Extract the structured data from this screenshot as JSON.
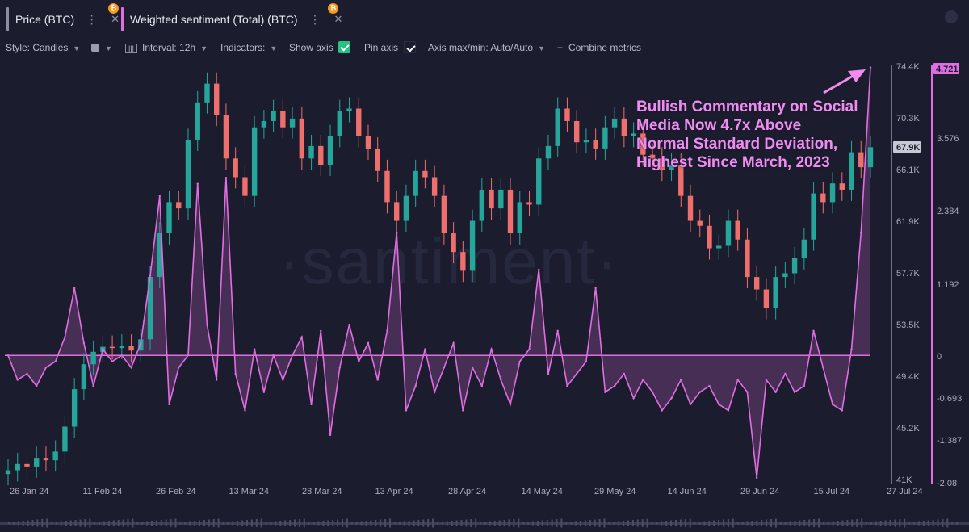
{
  "tabs": [
    {
      "label": "Price (BTC)",
      "bar_color": "#8b8fa3",
      "badge": "₿"
    },
    {
      "label": "Weighted sentiment (Total) (BTC)",
      "bar_color": "#e06ee0",
      "badge": "₿"
    }
  ],
  "toolbar": {
    "style": "Style: Candles",
    "interval": "Interval: 12h",
    "indicators": "Indicators:",
    "show_axis": "Show axis",
    "pin_axis": "Pin axis",
    "axis_maxmin": "Axis max/min: Auto/Auto",
    "combine": "Combine metrics"
  },
  "watermark": "·santiment·",
  "annotation": {
    "lines": [
      "Bullish Commentary on Social",
      "Media Now 4.7x Above",
      "Normal Standard Deviation,",
      "Highest Since March, 2023"
    ]
  },
  "colors": {
    "up": "#26a69a",
    "down": "#ef6f6c",
    "sentiment": "#e06ee0",
    "background": "#1b1d2f"
  },
  "chart_data": {
    "type": "line",
    "x_ticks": [
      "26 Jan 24",
      "11 Feb 24",
      "26 Feb 24",
      "13 Mar 24",
      "28 Mar 24",
      "13 Apr 24",
      "28 Apr 24",
      "14 May 24",
      "29 May 24",
      "14 Jun 24",
      "29 Jun 24",
      "15 Jul 24",
      "27 Jul 24"
    ],
    "price_axis": {
      "labels": [
        "74.4K",
        "70.3K",
        "66.1K",
        "61.9K",
        "57.7K",
        "53.5K",
        "49.4K",
        "45.2K",
        "41K"
      ],
      "ylim": [
        41000,
        74400
      ],
      "current_label": "67.9K"
    },
    "sentiment_axis": {
      "labels": [
        "3.576",
        "2.384",
        "1.192",
        "0",
        "-0.693",
        "-1.387",
        "-2.08"
      ],
      "ylim": [
        -2.08,
        4.721
      ],
      "current_label": "4.721"
    },
    "series": [
      {
        "name": "Price (BTC)",
        "kind": "candles",
        "x": [
          0,
          2,
          4,
          6,
          8,
          10,
          12,
          14,
          16,
          18,
          20,
          22,
          24,
          26,
          28,
          30,
          32,
          34,
          36,
          38,
          40,
          42,
          44,
          46,
          48,
          50,
          52,
          54,
          56,
          58,
          60,
          62,
          64,
          66,
          68,
          70,
          72,
          74,
          76,
          78,
          80,
          82,
          84,
          86,
          88,
          90,
          92,
          94,
          96,
          98,
          100,
          102,
          104,
          106,
          108,
          110,
          112,
          114,
          116,
          118,
          120,
          122,
          124,
          126,
          128,
          130,
          132,
          134,
          136,
          138,
          140,
          142,
          144,
          146,
          148,
          150,
          152,
          154,
          156,
          158,
          160,
          162,
          164,
          166,
          168,
          170,
          172,
          174,
          176,
          178,
          180,
          182
        ],
        "close": [
          42000,
          42500,
          42300,
          43000,
          42800,
          43500,
          45500,
          48500,
          50500,
          51500,
          51900,
          51800,
          52000,
          51600,
          52500,
          57500,
          61000,
          63500,
          63000,
          68500,
          71500,
          73000,
          70500,
          67000,
          65500,
          64000,
          69500,
          70000,
          70800,
          69500,
          70200,
          67000,
          68000,
          66500,
          68800,
          70800,
          71000,
          68800,
          67800,
          66000,
          63500,
          62000,
          64000,
          66000,
          65500,
          64000,
          61000,
          59500,
          58000,
          62000,
          64500,
          63000,
          64500,
          61000,
          63500,
          63300,
          67000,
          68000,
          71000,
          70000,
          68300,
          68500,
          67800,
          69500,
          70200,
          68800,
          69000,
          67300,
          67000,
          66100,
          66500,
          64000,
          62000,
          61600,
          59800,
          60000,
          62000,
          60500,
          57500,
          56500,
          55000,
          57500,
          57800,
          59000,
          60500,
          64200,
          63500,
          65000,
          64500,
          67500,
          66300,
          67900
        ]
      },
      {
        "name": "Weighted sentiment (Total) (BTC)",
        "kind": "line",
        "x": [
          0,
          2,
          4,
          6,
          8,
          10,
          12,
          14,
          16,
          18,
          20,
          22,
          24,
          26,
          28,
          30,
          32,
          34,
          36,
          38,
          40,
          42,
          44,
          46,
          48,
          50,
          52,
          54,
          56,
          58,
          60,
          62,
          64,
          66,
          68,
          70,
          72,
          74,
          76,
          78,
          80,
          82,
          84,
          86,
          88,
          90,
          92,
          94,
          96,
          98,
          100,
          102,
          104,
          106,
          108,
          110,
          112,
          114,
          116,
          118,
          120,
          122,
          124,
          126,
          128,
          130,
          132,
          134,
          136,
          138,
          140,
          142,
          144,
          146,
          148,
          150,
          152,
          154,
          156,
          158,
          160,
          162,
          164,
          166,
          168,
          170,
          172,
          174,
          176,
          178,
          180,
          182
        ],
        "values": [
          0.0,
          -0.4,
          -0.3,
          -0.5,
          -0.2,
          -0.1,
          0.3,
          1.1,
          0.2,
          -0.5,
          0.1,
          -0.1,
          0.0,
          -0.2,
          0.2,
          1.3,
          2.6,
          -0.8,
          -0.2,
          0.0,
          2.8,
          0.5,
          -0.4,
          2.9,
          -0.3,
          -0.9,
          0.1,
          -0.6,
          0.0,
          -0.4,
          0.0,
          0.3,
          -0.8,
          0.4,
          -1.3,
          -0.2,
          0.5,
          -0.1,
          0.2,
          -0.4,
          0.4,
          2.0,
          -0.9,
          -0.5,
          0.1,
          -0.6,
          -0.2,
          0.2,
          -0.9,
          -0.2,
          -0.5,
          0.1,
          -0.4,
          -0.8,
          -0.1,
          0.1,
          1.4,
          -0.3,
          0.4,
          -0.5,
          -0.3,
          -0.1,
          1.1,
          -0.6,
          -0.5,
          -0.3,
          -0.7,
          -0.4,
          -0.6,
          -0.9,
          -0.7,
          -0.4,
          -0.8,
          -0.6,
          -0.5,
          -0.8,
          -0.9,
          -0.4,
          -0.6,
          -2.0,
          -0.4,
          -0.6,
          -0.3,
          -0.6,
          -0.5,
          0.4,
          -0.2,
          -0.8,
          -0.9,
          0.1,
          2.0,
          4.7
        ]
      }
    ]
  }
}
